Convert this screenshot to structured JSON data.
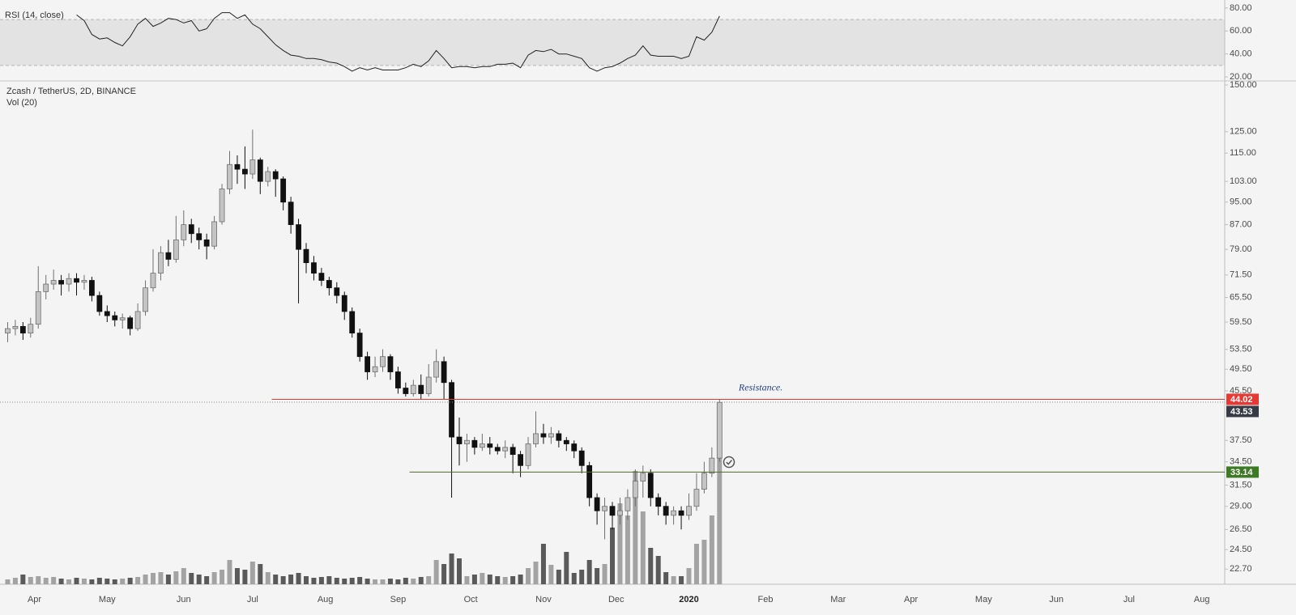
{
  "chart_data": [
    {
      "type": "line",
      "title": "RSI (14, close)",
      "color": "#222222",
      "band_color": "#e3e3e3",
      "levels": [
        30,
        70
      ],
      "xlim": [
        0,
        160
      ],
      "ylim": [
        16.5,
        87
      ],
      "yticks": [
        {
          "value": 80,
          "label": "80.00"
        },
        {
          "value": 60,
          "label": "60.00"
        },
        {
          "value": 40,
          "label": "40.00"
        },
        {
          "value": 20,
          "label": "20.00"
        }
      ],
      "x": [
        10,
        11,
        12,
        13,
        14,
        15,
        16,
        17,
        18,
        19,
        20,
        21,
        22,
        23,
        24,
        25,
        26,
        27,
        28,
        29,
        30,
        31,
        32,
        33,
        34,
        35,
        36,
        37,
        38,
        39,
        40,
        41,
        42,
        43,
        44,
        45,
        46,
        47,
        48,
        49,
        50,
        51,
        52,
        53,
        54,
        55,
        56,
        57,
        58,
        59,
        60,
        61,
        62,
        63,
        64,
        65,
        66,
        67,
        68,
        69,
        70,
        71,
        72,
        73,
        74,
        75,
        76,
        77,
        78,
        79,
        80,
        81,
        82,
        83,
        84,
        85,
        86,
        87,
        88,
        89,
        90,
        91,
        92,
        93,
        94
      ],
      "values": [
        74,
        69,
        57,
        53,
        54,
        50,
        47,
        55,
        66,
        71,
        64,
        67,
        71,
        70,
        67,
        69,
        60,
        62,
        71,
        76,
        76,
        71,
        74,
        66,
        62,
        55,
        48,
        43,
        39,
        38,
        36,
        36,
        35,
        33,
        32,
        29,
        25,
        28,
        26,
        28,
        26,
        26,
        26,
        28,
        31,
        29,
        34,
        43,
        36,
        28,
        29,
        29,
        28,
        29,
        29,
        31,
        31,
        32,
        28,
        39,
        43,
        42,
        44,
        40,
        40,
        38,
        36,
        28,
        25,
        28,
        29,
        32,
        36,
        39,
        47,
        39,
        38,
        38,
        38,
        36,
        38,
        55,
        52,
        59,
        73
      ]
    },
    {
      "type": "candlestick",
      "title": "Zcash / TetherUS, 2D, BINANCE",
      "subtitle": "Vol (20)",
      "log_scale": true,
      "up_color": "#c4c4c4",
      "down_color": "#111111",
      "volume_up_color": "#a3a3a3",
      "volume_down_color": "#5a5a5a",
      "xlim": [
        0,
        160
      ],
      "ylim": [
        21.4,
        152.4
      ],
      "xticks": [
        {
          "value": 4.5,
          "label": "Apr"
        },
        {
          "value": 14,
          "label": "May"
        },
        {
          "value": 24,
          "label": "Jun"
        },
        {
          "value": 33,
          "label": "Jul"
        },
        {
          "value": 42.5,
          "label": "Aug"
        },
        {
          "value": 52,
          "label": "Sep"
        },
        {
          "value": 61.5,
          "label": "Oct"
        },
        {
          "value": 71,
          "label": "Nov"
        },
        {
          "value": 80.5,
          "label": "Dec"
        },
        {
          "value": 90,
          "label": "2020"
        },
        {
          "value": 100,
          "label": "Feb"
        },
        {
          "value": 109.5,
          "label": "Mar"
        },
        {
          "value": 119,
          "label": "Apr"
        },
        {
          "value": 128.5,
          "label": "May"
        },
        {
          "value": 138,
          "label": "Jun"
        },
        {
          "value": 147.5,
          "label": "Jul"
        },
        {
          "value": 157,
          "label": "Aug"
        }
      ],
      "yticks": [
        {
          "value": 150,
          "label": "150.00"
        },
        {
          "value": 125,
          "label": "125.00"
        },
        {
          "value": 115,
          "label": "115.00"
        },
        {
          "value": 103,
          "label": "103.00"
        },
        {
          "value": 95,
          "label": "95.00"
        },
        {
          "value": 87,
          "label": "87.00"
        },
        {
          "value": 79,
          "label": "79.00"
        },
        {
          "value": 71.5,
          "label": "71.50"
        },
        {
          "value": 65.5,
          "label": "65.50"
        },
        {
          "value": 59.5,
          "label": "59.50"
        },
        {
          "value": 53.5,
          "label": "53.50"
        },
        {
          "value": 49.5,
          "label": "49.50"
        },
        {
          "value": 45.5,
          "label": "45.50"
        },
        {
          "value": 37.5,
          "label": "37.50"
        },
        {
          "value": 34.5,
          "label": "34.50"
        },
        {
          "value": 31.5,
          "label": "31.50"
        },
        {
          "value": 29,
          "label": "29.00"
        },
        {
          "value": 26.5,
          "label": "26.50"
        },
        {
          "value": 24.5,
          "label": "24.50"
        },
        {
          "value": 22.7,
          "label": "22.70"
        }
      ],
      "x": [
        1,
        2,
        3,
        4,
        5,
        6,
        7,
        8,
        9,
        10,
        11,
        12,
        13,
        14,
        15,
        16,
        17,
        18,
        19,
        20,
        21,
        22,
        23,
        24,
        25,
        26,
        27,
        28,
        29,
        30,
        31,
        32,
        33,
        34,
        35,
        36,
        37,
        38,
        39,
        40,
        41,
        42,
        43,
        44,
        45,
        46,
        47,
        48,
        49,
        50,
        51,
        52,
        53,
        54,
        55,
        56,
        57,
        58,
        59,
        60,
        61,
        62,
        63,
        64,
        65,
        66,
        67,
        68,
        69,
        70,
        71,
        72,
        73,
        74,
        75,
        76,
        77,
        78,
        79,
        80,
        81,
        82,
        83,
        84,
        85,
        86,
        87,
        88,
        89,
        90,
        91,
        92,
        93,
        94
      ],
      "open": [
        57,
        58,
        58.5,
        57,
        59,
        67,
        69,
        70,
        69,
        70.5,
        69.5,
        70,
        66,
        62,
        61,
        60,
        60.5,
        58,
        62,
        68,
        72,
        78,
        76,
        82,
        87,
        84,
        82,
        80,
        88,
        100,
        110,
        108,
        106,
        112,
        103,
        107,
        104,
        95,
        87,
        79,
        75,
        72,
        70,
        68,
        66,
        62,
        57,
        52,
        49,
        50,
        52,
        49,
        46,
        45,
        46.5,
        45,
        48,
        51,
        47,
        38,
        37,
        37.5,
        36.5,
        37,
        36.5,
        36,
        36.5,
        35.5,
        34,
        37,
        38.5,
        38,
        38.5,
        37.5,
        37,
        36,
        34,
        30,
        28.5,
        29,
        28,
        28.5,
        30,
        32,
        33,
        30,
        29,
        28,
        28.5,
        28,
        29,
        31,
        33,
        35
      ],
      "high": [
        59.5,
        60,
        59.5,
        60.5,
        74,
        71.5,
        73,
        71.5,
        72,
        72,
        71.5,
        71,
        67,
        63.5,
        62,
        61.5,
        61,
        64,
        70,
        79,
        80,
        82,
        90,
        92,
        89,
        86,
        84,
        90,
        102,
        116,
        114,
        118,
        126,
        113,
        109,
        108,
        105,
        97,
        89,
        81,
        77,
        73.5,
        71,
        69.5,
        67,
        63,
        58,
        53,
        52,
        53.5,
        52.5,
        50,
        47,
        47.5,
        48.5,
        50.5,
        53.5,
        52,
        47.5,
        41,
        38.5,
        38,
        38.5,
        38,
        37,
        37.5,
        37,
        36,
        38,
        42,
        40,
        39.5,
        39,
        38,
        37.5,
        36.5,
        34.5,
        30.5,
        30,
        29.5,
        30,
        31,
        33.5,
        34,
        33.5,
        30.5,
        29.5,
        29,
        29,
        30.5,
        33,
        34.5,
        36.5,
        44
      ],
      "low": [
        55,
        56.5,
        55.5,
        56,
        58,
        65,
        67.5,
        66,
        67,
        66,
        67.5,
        64.5,
        61,
        59.5,
        58.5,
        58,
        56.5,
        57.5,
        61,
        67,
        70,
        74,
        75,
        80,
        81,
        79,
        76,
        79,
        87,
        98,
        102,
        100,
        104,
        98,
        101,
        97,
        92,
        84,
        64,
        72,
        70,
        68.5,
        66,
        64,
        60,
        56,
        51,
        47.5,
        48,
        49,
        47.5,
        45,
        44.5,
        44.5,
        44,
        44.5,
        47,
        44,
        30,
        34,
        34.5,
        35.5,
        36,
        35.5,
        35.5,
        35,
        33,
        32.5,
        33.5,
        36.5,
        37,
        37,
        36.5,
        36,
        35,
        33,
        29,
        27,
        25.5,
        26.5,
        27,
        27.5,
        29,
        30,
        29,
        28,
        27,
        27,
        26.5,
        27.5,
        28.5,
        30.5,
        32.5,
        34.5
      ],
      "close": [
        58,
        58.5,
        57,
        59,
        67,
        69,
        70,
        69,
        70.5,
        69.5,
        70,
        66,
        62,
        61,
        60,
        60.5,
        58,
        62,
        68,
        72,
        78,
        76,
        82,
        87,
        84,
        82,
        80,
        88,
        100,
        110,
        108,
        106,
        112,
        103,
        107,
        104,
        95,
        87,
        79,
        75,
        72,
        70,
        68,
        66,
        62,
        57,
        52,
        49,
        50,
        52,
        49,
        46,
        45,
        46.5,
        45,
        48,
        51,
        47,
        38,
        37,
        37.5,
        36.5,
        37,
        36.5,
        36,
        36.5,
        35.5,
        34,
        37,
        38.5,
        38,
        38.5,
        37.5,
        37,
        36,
        34,
        30,
        28.5,
        29,
        28,
        28.5,
        30,
        32,
        33,
        30,
        29,
        28,
        28.5,
        28,
        29,
        31,
        33,
        35,
        43.5
      ],
      "volume": [
        6,
        8,
        12,
        9,
        10,
        8,
        9,
        7,
        6,
        8,
        7,
        6,
        8,
        7,
        6,
        7,
        8,
        9,
        12,
        14,
        15,
        12,
        16,
        20,
        14,
        12,
        10,
        15,
        18,
        30,
        20,
        18,
        28,
        25,
        15,
        12,
        10,
        12,
        14,
        10,
        8,
        9,
        10,
        8,
        7,
        8,
        9,
        7,
        6,
        6,
        7,
        6,
        8,
        7,
        9,
        10,
        30,
        25,
        38,
        32,
        10,
        12,
        14,
        12,
        10,
        9,
        10,
        12,
        20,
        28,
        50,
        24,
        18,
        40,
        14,
        18,
        30,
        20,
        25,
        70,
        100,
        85,
        140,
        90,
        45,
        35,
        15,
        10,
        10,
        20,
        50,
        55,
        85,
        225
      ],
      "price_lines": [
        {
          "value": 44.02,
          "color": "#e53935",
          "box": "#e53935",
          "from": 35.5
        },
        {
          "value": 43.53,
          "color": "#8a8a8a",
          "box": "#363a45",
          "style": "dotted"
        },
        {
          "value": 33.14,
          "color": "#4c6b2c",
          "box": "#3c7a24",
          "from": 53.5
        }
      ],
      "annotations": [
        {
          "text": "Resistance.",
          "x": 96.5,
          "y": 46
        }
      ]
    }
  ]
}
